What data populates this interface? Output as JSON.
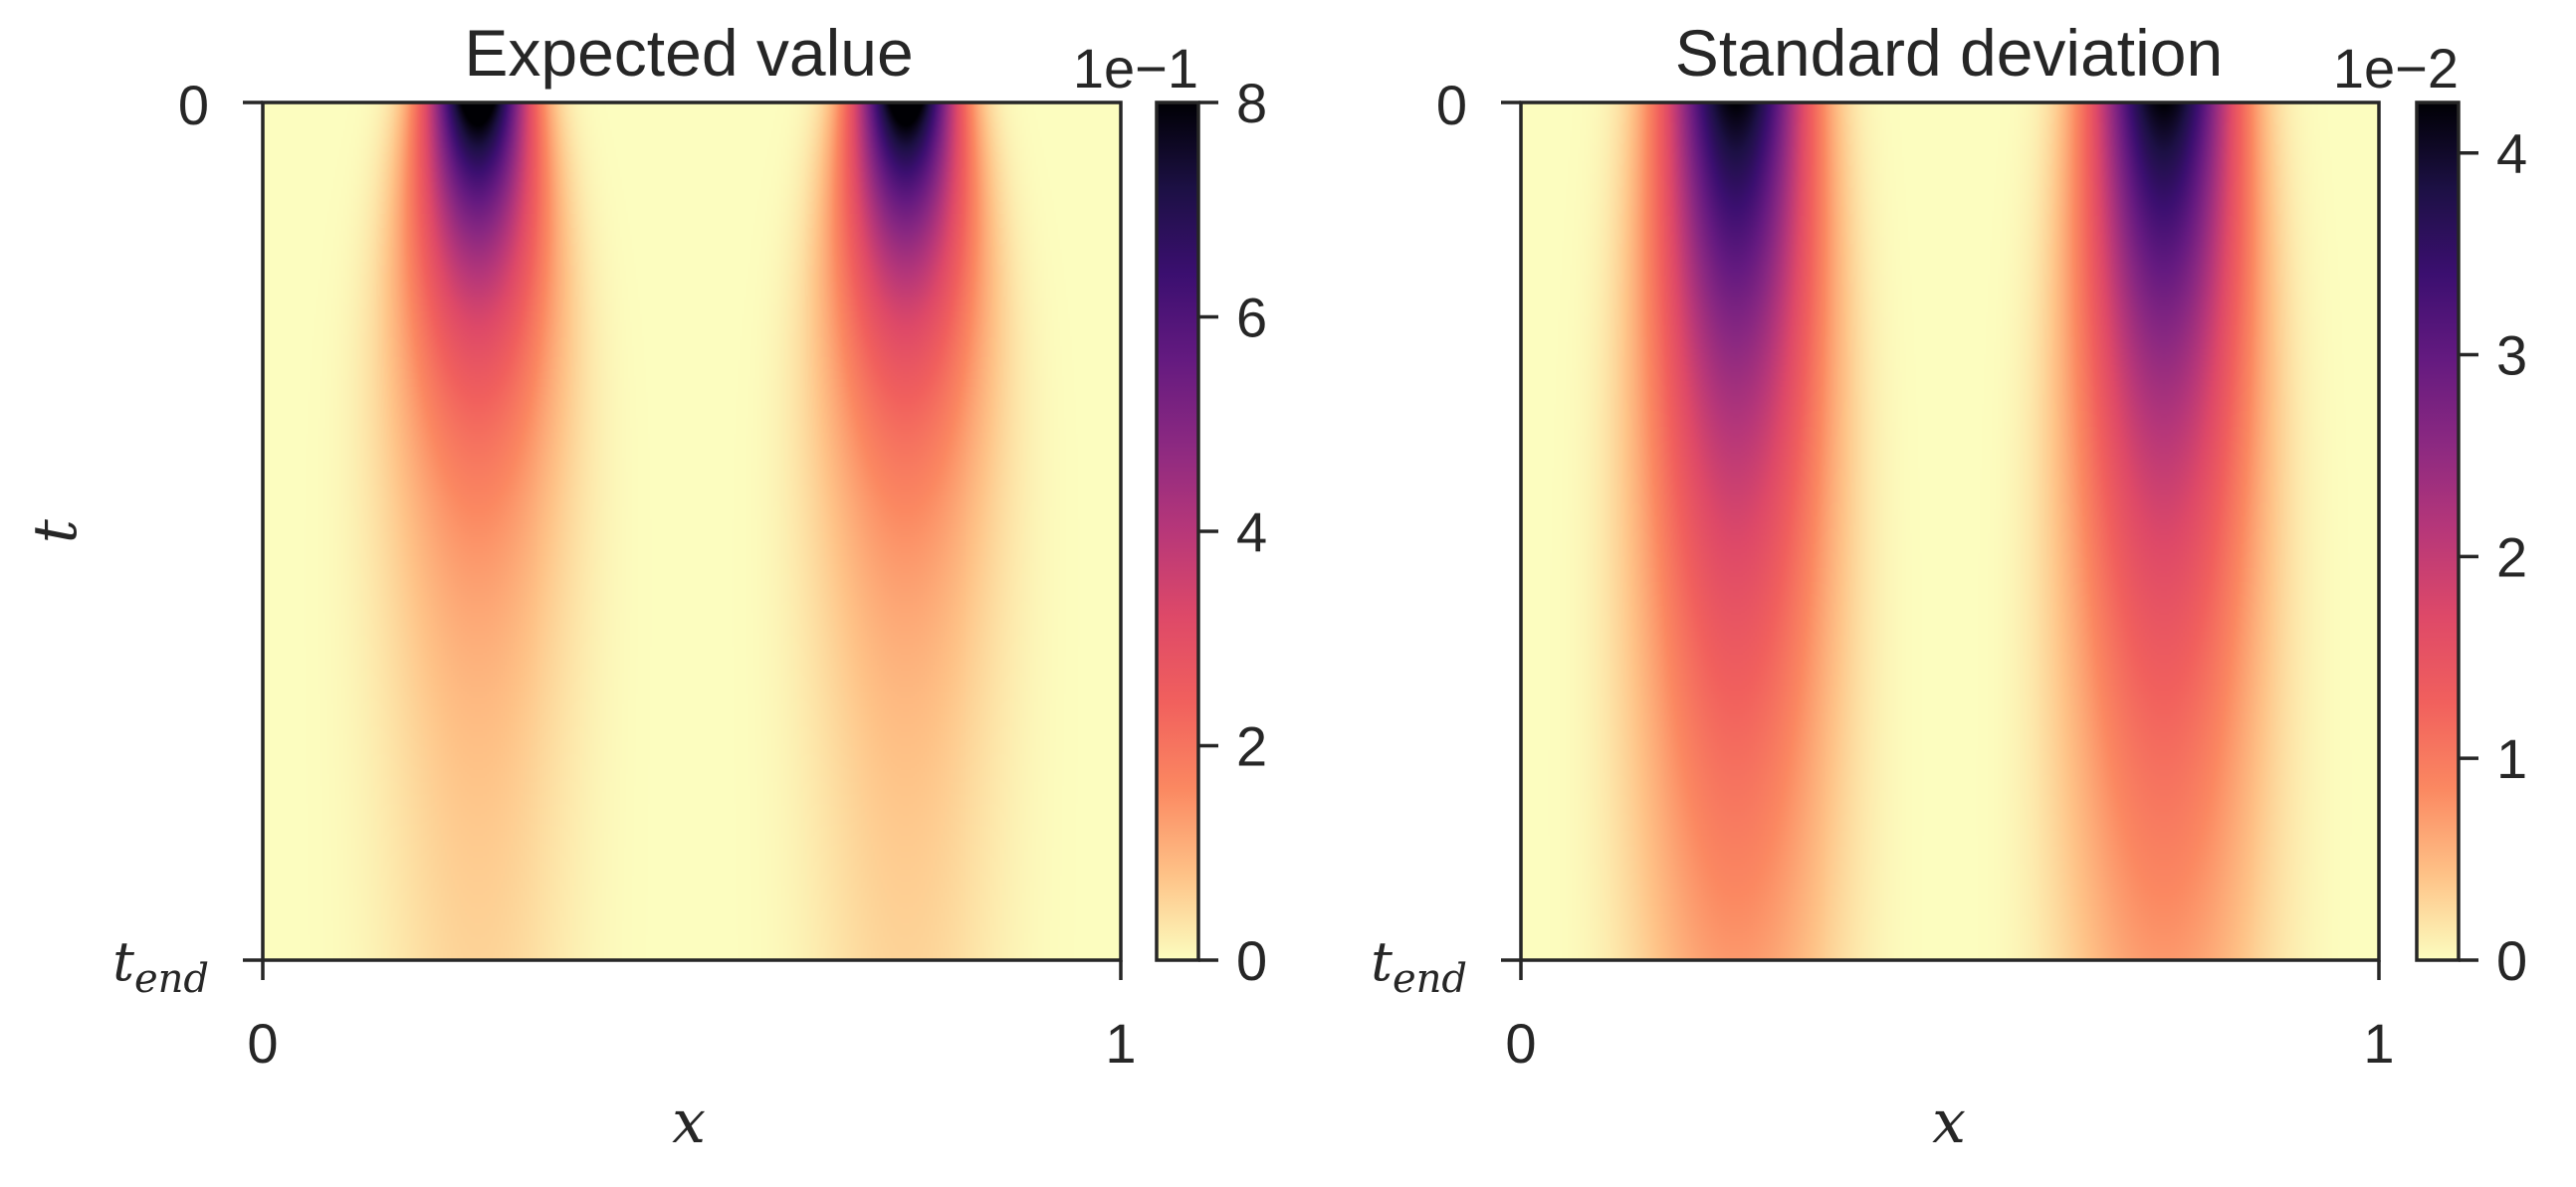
{
  "chart_data": [
    {
      "type": "heatmap",
      "title": "Expected value",
      "xlabel": "x",
      "ylabel": "t",
      "x_ticks": [
        "0",
        "1"
      ],
      "y_ticks": [
        "0",
        "t_end"
      ],
      "y_tick_main": "t",
      "y_tick_sub": "end",
      "xlim": [
        0,
        1
      ],
      "y_direction": "top-to-bottom",
      "colormap": "magma_r",
      "colorbar": {
        "range": [
          0,
          0.8
        ],
        "ticks": [
          "0",
          "2",
          "4",
          "6",
          "8"
        ],
        "tick_values": [
          0,
          0.2,
          0.4,
          0.6,
          0.8
        ],
        "offset_label": "1e−1"
      },
      "field_description": "Two maxima at x=0.25 and x=0.75 at t=0 peaking near 0.8, decaying toward t_end; near-zero band at x=0.5"
    },
    {
      "type": "heatmap",
      "title": "Standard deviation",
      "xlabel": "x",
      "ylabel": "",
      "x_ticks": [
        "0",
        "1"
      ],
      "y_ticks": [
        "0",
        "t_end"
      ],
      "y_tick_main": "t",
      "y_tick_sub": "end",
      "xlim": [
        0,
        1
      ],
      "y_direction": "top-to-bottom",
      "colormap": "magma_r",
      "colorbar": {
        "range": [
          0,
          0.0425
        ],
        "ticks": [
          "0",
          "1",
          "2",
          "3",
          "4"
        ],
        "tick_values": [
          0,
          0.01,
          0.02,
          0.03,
          0.04
        ],
        "offset_label": "1e−2"
      },
      "field_description": "Two vertical bands at x=0.25 and x=0.75, maximum ~0.0425 near top, decaying slowly toward t_end"
    }
  ],
  "colors": {
    "axis": "#262626",
    "background": "#ffffff",
    "colormap_stops": [
      "#fcfdbf",
      "#fec287",
      "#fb8861",
      "#f1605d",
      "#de4968",
      "#b73779",
      "#8c2981",
      "#641a80",
      "#3b0f70",
      "#1c1044",
      "#000004"
    ]
  }
}
